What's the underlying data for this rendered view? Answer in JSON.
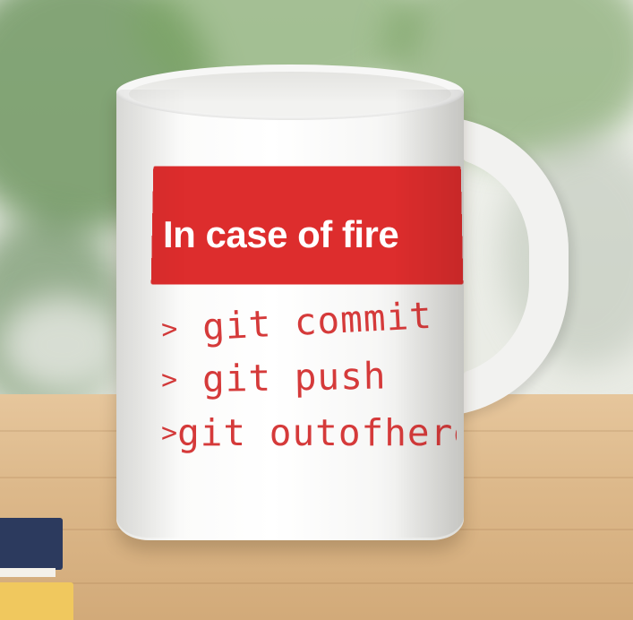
{
  "mug": {
    "banner": "In case of fire",
    "lines": [
      {
        "prompt": ">",
        "text": "git commit"
      },
      {
        "prompt": ">",
        "text": "git push"
      },
      {
        "prompt": ">",
        "text": "git outofhere"
      }
    ]
  },
  "colors": {
    "banner_red": "#dd2d2d",
    "command_red": "#d53a3a",
    "mug_white": "#ffffff",
    "table_wood": "#ddb98b"
  }
}
